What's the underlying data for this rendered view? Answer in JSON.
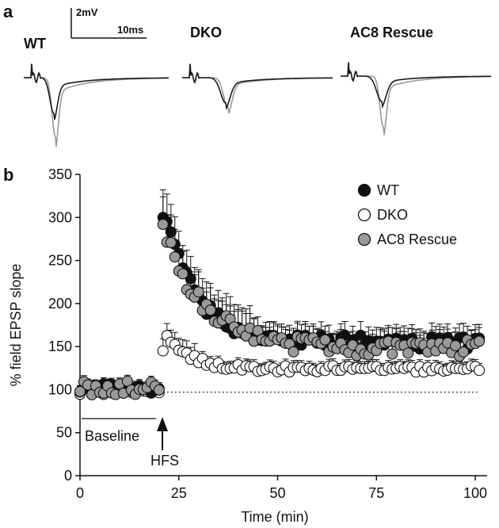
{
  "panels": {
    "a": "a",
    "b": "b"
  },
  "scale_bar": {
    "voltage": "2mV",
    "time": "10ms"
  },
  "traces": [
    {
      "title": "WT"
    },
    {
      "title": "DKO"
    },
    {
      "title": "AC8 Rescue"
    }
  ],
  "colors": {
    "wt": "#111111",
    "dko": "#ffffff",
    "rescue": "#9a9a9a",
    "trace_base": "#1a1a1a",
    "trace_post": "#999999"
  },
  "annotations": {
    "baseline": "Baseline",
    "hfs": "HFS"
  },
  "chart_data": {
    "type": "scatter",
    "xlabel": "Time (min)",
    "ylabel": "% field EPSP slope",
    "xlim": [
      0,
      103
    ],
    "ylim": [
      0,
      350
    ],
    "xticks": [
      0,
      25,
      50,
      75,
      100
    ],
    "yticks": [
      0,
      50,
      100,
      150,
      200,
      250,
      300,
      350
    ],
    "baseline_level": 97,
    "legend_position": "top-right",
    "grid": false,
    "series": [
      {
        "name": "WT",
        "key": "wt",
        "error_bars": true
      },
      {
        "name": "DKO",
        "key": "dko",
        "error_bars": true
      },
      {
        "name": "AC8 Rescue",
        "key": "rescue",
        "error_bars": true
      }
    ]
  }
}
